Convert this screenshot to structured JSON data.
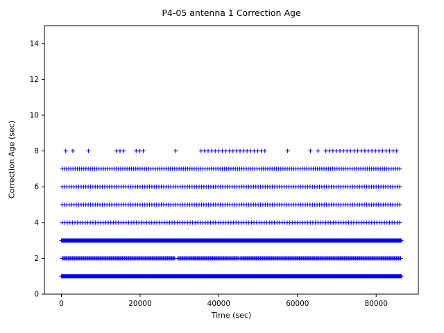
{
  "chart_data": {
    "type": "scatter",
    "title": "P4-05 antenna 1 Correction Age",
    "xlabel": "Time (sec)",
    "ylabel": "Correction Age (sec)",
    "marker": "plus",
    "marker_color": "#0000ff",
    "grid": false,
    "legend": null,
    "xlim": [
      -4320,
      90720
    ],
    "ylim": [
      0,
      15
    ],
    "xticks": [
      0,
      20000,
      40000,
      60000,
      80000
    ],
    "xtick_labels": [
      "0",
      "20000",
      "40000",
      "60000",
      "80000"
    ],
    "yticks": [
      0,
      2,
      4,
      6,
      8,
      10,
      12,
      14
    ],
    "ytick_labels": [
      "0",
      "2",
      "4",
      "6",
      "8",
      "10",
      "12",
      "14"
    ],
    "description": "Correction age values occur only at integer seconds 1-8; density decreases with age. Age 8 appears only in sparse clusters.",
    "rows": [
      {
        "y": 1,
        "spacing": 120,
        "segments": [
          [
            0,
            86400
          ]
        ]
      },
      {
        "y": 2,
        "spacing": 260,
        "segments": [
          [
            200,
            29000
          ],
          [
            29600,
            45000
          ],
          [
            45400,
            86400
          ]
        ]
      },
      {
        "y": 3,
        "spacing": 150,
        "segments": [
          [
            0,
            86400
          ]
        ]
      },
      {
        "y": 4,
        "spacing": 650,
        "segments": [
          [
            200,
            86400
          ]
        ]
      },
      {
        "y": 5,
        "spacing": 600,
        "segments": [
          [
            200,
            86400
          ]
        ]
      },
      {
        "y": 6,
        "spacing": 600,
        "segments": [
          [
            200,
            86400
          ]
        ]
      },
      {
        "y": 7,
        "spacing": 550,
        "segments": [
          [
            200,
            86400
          ]
        ]
      },
      {
        "y": 8,
        "spacing": 900,
        "segments": [
          [
            1100,
            1100
          ],
          [
            2900,
            2900
          ],
          [
            6900,
            6900
          ],
          [
            14000,
            15800
          ],
          [
            19000,
            20900
          ],
          [
            29000,
            29000
          ],
          [
            35500,
            52500
          ],
          [
            57500,
            57500
          ],
          [
            63300,
            63300
          ],
          [
            65200,
            65200
          ],
          [
            67200,
            86000
          ]
        ]
      }
    ]
  }
}
